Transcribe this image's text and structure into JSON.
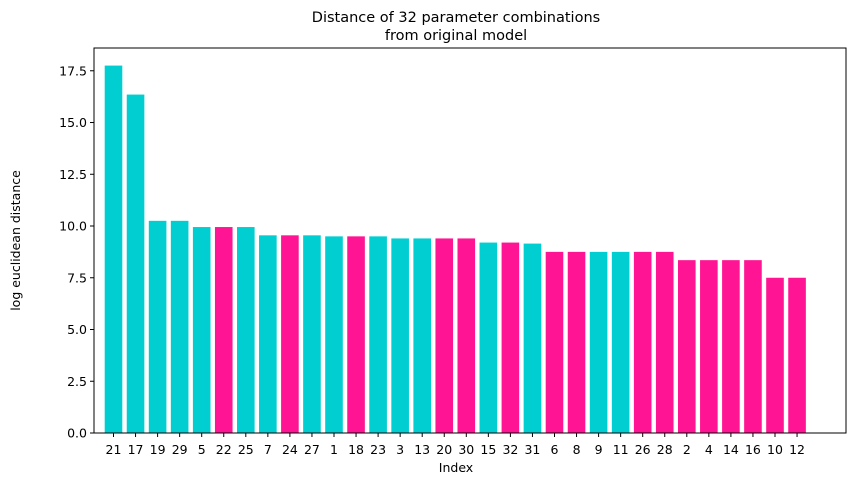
{
  "chart_data": {
    "type": "bar",
    "title_line1": "Distance of 32 parameter combinations",
    "title_line2": "from original model",
    "xlabel": "Index",
    "ylabel": "log euclidean distance",
    "ylim": [
      0,
      18.6
    ],
    "yticks": [
      "0.0",
      "2.5",
      "5.0",
      "7.5",
      "10.0",
      "12.5",
      "15.0",
      "17.5"
    ],
    "legend": "none",
    "grid": false,
    "colors": {
      "cyan": "#00CED1",
      "pink": "#FF1493"
    },
    "categories": [
      "21",
      "17",
      "19",
      "29",
      "5",
      "22",
      "25",
      "7",
      "24",
      "27",
      "1",
      "18",
      "23",
      "3",
      "13",
      "20",
      "30",
      "15",
      "32",
      "31",
      "6",
      "8",
      "9",
      "11",
      "26",
      "28",
      "2",
      "4",
      "14",
      "16",
      "10",
      "12"
    ],
    "values": [
      17.75,
      16.35,
      10.25,
      10.25,
      9.95,
      9.95,
      9.95,
      9.55,
      9.55,
      9.55,
      9.5,
      9.5,
      9.5,
      9.4,
      9.4,
      9.4,
      9.4,
      9.2,
      9.2,
      9.15,
      8.75,
      8.75,
      8.75,
      8.75,
      8.75,
      8.75,
      8.35,
      8.35,
      8.35,
      8.35,
      7.5,
      7.5
    ],
    "bar_colors": [
      "#00CED1",
      "#00CED1",
      "#00CED1",
      "#00CED1",
      "#00CED1",
      "#FF1493",
      "#00CED1",
      "#00CED1",
      "#FF1493",
      "#00CED1",
      "#00CED1",
      "#FF1493",
      "#00CED1",
      "#00CED1",
      "#00CED1",
      "#FF1493",
      "#FF1493",
      "#00CED1",
      "#FF1493",
      "#00CED1",
      "#FF1493",
      "#FF1493",
      "#00CED1",
      "#00CED1",
      "#FF1493",
      "#FF1493",
      "#FF1493",
      "#FF1493",
      "#FF1493",
      "#FF1493",
      "#FF1493",
      "#FF1493"
    ]
  }
}
